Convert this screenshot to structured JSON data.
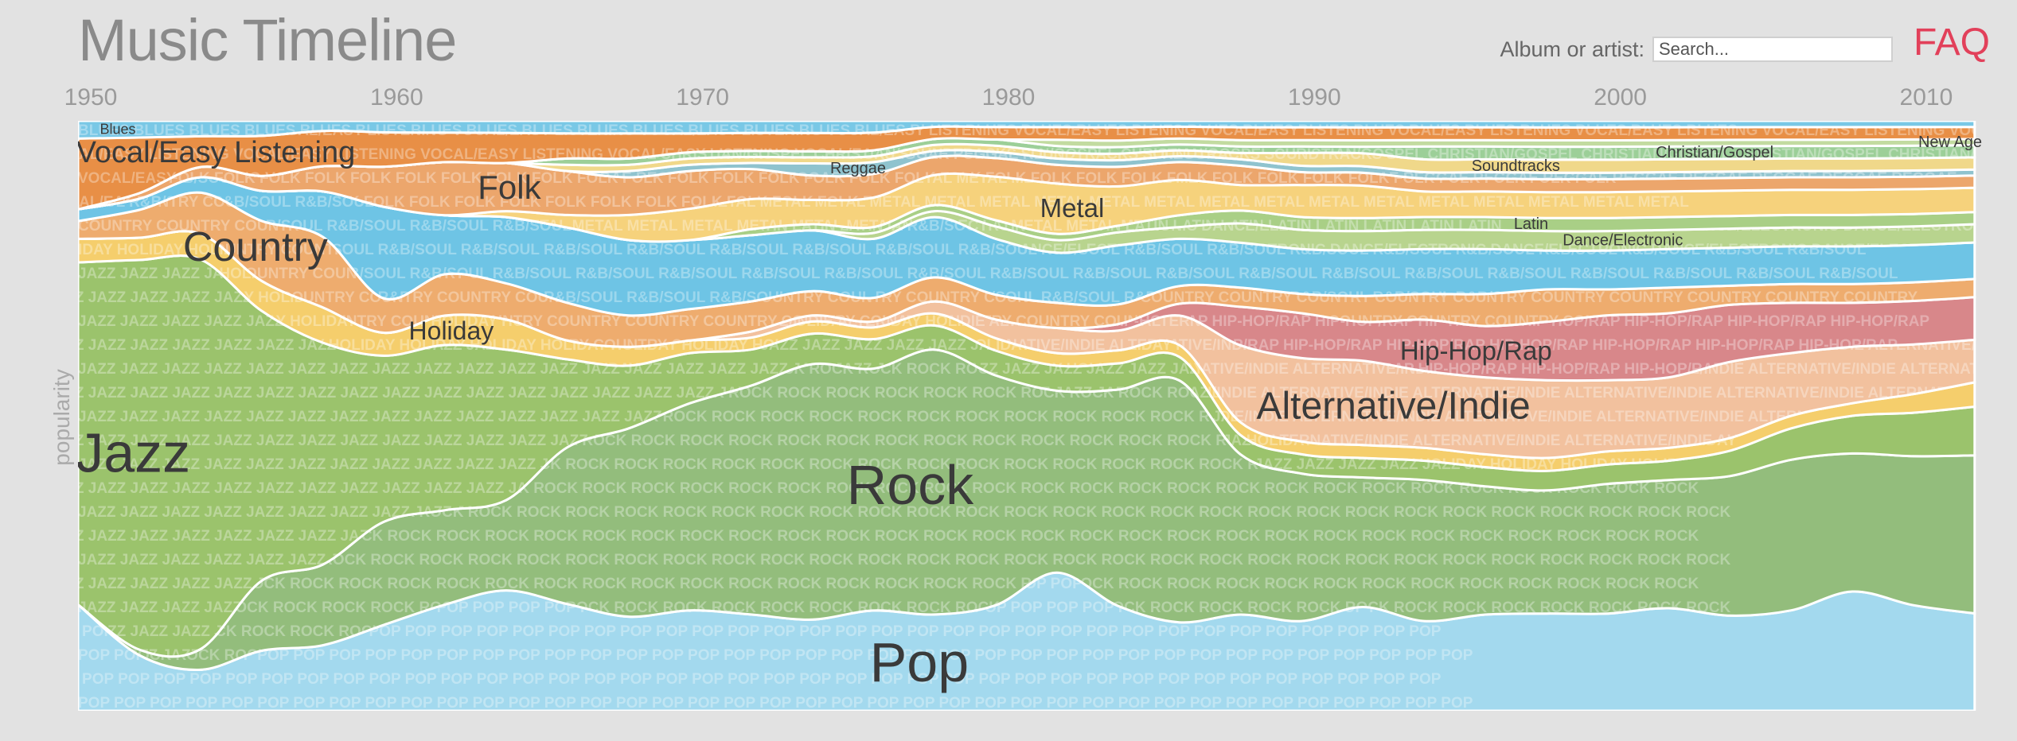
{
  "app": {
    "title": "Music Timeline",
    "search_label": "Album or artist:",
    "search_placeholder": "Search...",
    "faq_label": "FAQ"
  },
  "colors": {
    "background": "#e2e2e2",
    "faq": "#e2405a",
    "separator": "#ffffff"
  },
  "chart_data": {
    "type": "area",
    "x": [
      1950,
      1952,
      1954,
      1956,
      1958,
      1960,
      1962,
      1964,
      1966,
      1968,
      1970,
      1972,
      1974,
      1976,
      1978,
      1980,
      1982,
      1984,
      1986,
      1988,
      1990,
      1992,
      1994,
      1996,
      1998,
      2000,
      2002,
      2004,
      2006,
      2008,
      2010,
      2012
    ],
    "xlim": [
      1950,
      2012.5
    ],
    "xticks": [
      1950,
      1960,
      1970,
      1980,
      1990,
      2000,
      2010
    ],
    "ylabel": "popularity",
    "ylim": [
      0,
      100
    ],
    "series": [
      {
        "name": "Pop",
        "color": "#a3d9ee",
        "watermark": "POP",
        "values": [
          18,
          10,
          8,
          12,
          13,
          15,
          18,
          20,
          17,
          15,
          16,
          16,
          15,
          17,
          16,
          17,
          22,
          16,
          15,
          15,
          14,
          16,
          14,
          15,
          15,
          15,
          16,
          15,
          16,
          19,
          17,
          16
        ]
      },
      {
        "name": "Rock",
        "color": "#93bd7c",
        "watermark": "ROCK",
        "values": [
          0,
          1,
          4,
          14,
          16,
          18,
          16,
          15,
          25,
          30,
          33,
          38,
          42,
          41,
          44,
          37,
          29,
          33,
          41,
          25,
          23,
          20,
          22,
          20,
          19,
          20,
          20,
          22,
          24,
          22,
          24,
          26
        ]
      },
      {
        "name": "Jazz",
        "color": "#9bc36c",
        "watermark": "JAZZ",
        "values": [
          58,
          70,
          76,
          54,
          44,
          29,
          28,
          25,
          14,
          10,
          8,
          6,
          5,
          5,
          4,
          4,
          4,
          4,
          4,
          3,
          3,
          3,
          3,
          3,
          3,
          3,
          3,
          4,
          5,
          6,
          7,
          8
        ]
      },
      {
        "name": "Holiday",
        "color": "#f5ce6c",
        "watermark": "HOLIDAY",
        "values": [
          4,
          4,
          5,
          6,
          7,
          4,
          5,
          5,
          3,
          3,
          2,
          2,
          2,
          2,
          2,
          2,
          2,
          2,
          2,
          2,
          2,
          2,
          2,
          2,
          2,
          2,
          2,
          2,
          2,
          2,
          3,
          4
        ]
      },
      {
        "name": "Alternative/Indie",
        "color": "#f2c19e",
        "watermark": "ALTERNATIVE/INDIE",
        "values": [
          0,
          0,
          0,
          0,
          0,
          0,
          0,
          0,
          0,
          0,
          0,
          1,
          1,
          1,
          2,
          3,
          4,
          3,
          5,
          12,
          13,
          13,
          12,
          12,
          12,
          11,
          11,
          12,
          10,
          9,
          8,
          7
        ]
      },
      {
        "name": "Hip-Hop/Rap",
        "color": "#d8878a",
        "watermark": "HIP-HOP/RAP",
        "values": [
          0,
          0,
          0,
          0,
          0,
          0,
          0,
          0,
          0,
          0,
          0,
          0,
          0,
          0,
          0,
          0,
          0,
          1,
          2,
          6,
          7,
          6,
          8,
          8,
          9,
          10,
          10,
          9,
          8,
          7,
          7,
          7
        ]
      },
      {
        "name": "Country",
        "color": "#eeac6e",
        "watermark": "COUNTRY",
        "values": [
          3,
          5,
          8,
          12,
          14,
          6,
          7,
          6,
          6,
          5,
          5,
          5,
          4,
          4,
          4,
          4,
          4,
          3,
          3,
          3,
          3,
          4,
          4,
          5,
          5,
          4,
          4,
          3,
          3,
          3,
          3,
          3
        ]
      },
      {
        "name": "R&B/Soul",
        "color": "#6ec4e5",
        "watermark": "R&B/SOUL",
        "values": [
          2,
          2,
          3,
          6,
          9,
          16,
          10,
          11,
          12,
          12,
          11,
          11,
          10,
          10,
          10,
          9,
          8,
          9,
          8,
          7,
          7,
          7,
          7,
          7,
          6,
          6,
          6,
          6,
          6,
          6,
          6,
          6
        ]
      },
      {
        "name": "Dance/Electronic",
        "color": "#b8d48e",
        "watermark": "DANCE/ELECTRONIC",
        "values": [
          0,
          0,
          0,
          0,
          0,
          0,
          0,
          0,
          0,
          0,
          0,
          0,
          0,
          1,
          1,
          2,
          2,
          2,
          2,
          3,
          3,
          3,
          3,
          3,
          3,
          3,
          3,
          3,
          3,
          3,
          3,
          3
        ]
      },
      {
        "name": "Latin",
        "color": "#a9cf86",
        "watermark": "LATIN",
        "values": [
          0,
          0,
          0,
          0,
          0,
          0,
          0,
          0,
          0,
          0,
          0,
          1,
          1,
          1,
          1,
          1,
          1,
          1,
          2,
          2,
          2,
          2,
          2,
          2,
          2,
          2,
          2,
          2,
          2,
          2,
          2,
          2
        ]
      },
      {
        "name": "Metal",
        "color": "#f6d27c",
        "watermark": "METAL",
        "values": [
          0,
          0,
          0,
          0,
          0,
          0,
          0,
          1,
          2,
          4,
          5,
          5,
          4,
          5,
          5,
          7,
          8,
          6,
          6,
          4,
          5,
          5,
          4,
          4,
          4,
          4,
          4,
          4,
          4,
          4,
          4,
          4
        ]
      },
      {
        "name": "Folk",
        "color": "#eca66c",
        "watermark": "FOLK",
        "values": [
          0,
          1,
          2,
          3,
          5,
          7,
          9,
          8,
          7,
          6,
          6,
          5,
          4,
          4,
          3,
          3,
          3,
          3,
          3,
          3,
          2,
          2,
          2,
          2,
          2,
          2,
          2,
          2,
          2,
          2,
          2,
          2
        ]
      },
      {
        "name": "Reggae",
        "color": "#8fc3ce",
        "watermark": "REGGAE",
        "values": [
          0,
          0,
          0,
          0,
          0,
          0,
          0,
          0,
          0,
          1,
          1,
          1,
          2,
          2,
          1,
          1,
          1,
          1,
          1,
          1,
          1,
          1,
          1,
          1,
          1,
          1,
          1,
          1,
          1,
          1,
          1,
          1
        ]
      },
      {
        "name": "Soundtracks",
        "color": "#f0d88a",
        "watermark": "SOUNDTRACKS",
        "values": [
          0,
          0,
          0,
          0,
          0,
          0,
          0,
          0,
          1,
          1,
          1,
          1,
          1,
          1,
          1,
          1,
          1,
          1,
          1,
          1,
          2,
          2,
          2,
          2,
          2,
          2,
          2,
          2,
          2,
          2,
          2,
          2
        ]
      },
      {
        "name": "Christian/Gospel",
        "color": "#9ccf98",
        "watermark": "CHRISTIAN/GOSPEL",
        "values": [
          0,
          0,
          0,
          0,
          0,
          0,
          0,
          0,
          1,
          1,
          1,
          1,
          1,
          1,
          1,
          1,
          1,
          1,
          1,
          1,
          1,
          1,
          2,
          2,
          2,
          2,
          2,
          2,
          2,
          2,
          2,
          2
        ]
      },
      {
        "name": "New Age",
        "color": "#c2dba0",
        "watermark": "NEW AGE",
        "values": [
          0,
          0,
          0,
          0,
          0,
          0,
          0,
          0,
          0,
          0,
          0,
          0,
          0,
          0,
          0,
          0,
          1,
          1,
          1,
          1,
          1,
          1,
          1,
          1,
          1,
          1,
          1,
          1,
          1,
          1,
          1,
          1
        ]
      },
      {
        "name": "Vocal/Easy Listening",
        "color": "#e88f46",
        "watermark": "VOCAL/EASY LISTENING",
        "values": [
          12,
          10,
          6,
          8,
          7,
          6,
          5,
          5,
          4,
          4,
          3,
          3,
          3,
          3,
          2,
          2,
          2,
          2,
          2,
          2,
          2,
          2,
          2,
          2,
          2,
          2,
          2,
          2,
          2,
          2,
          2,
          2
        ]
      },
      {
        "name": "Blues",
        "color": "#79c8e6",
        "watermark": "BLUES",
        "values": [
          3,
          3,
          3,
          3,
          2,
          2,
          2,
          2,
          2,
          2,
          2,
          2,
          2,
          2,
          1,
          1,
          1,
          1,
          1,
          1,
          1,
          1,
          1,
          1,
          1,
          1,
          1,
          1,
          1,
          1,
          1,
          1
        ]
      }
    ],
    "labels": [
      {
        "text": "Pop",
        "series": "Pop",
        "x": 1977.5,
        "size": 70
      },
      {
        "text": "Rock",
        "series": "Rock",
        "x": 1977.2,
        "size": 70
      },
      {
        "text": "Jazz",
        "series": "Jazz",
        "x": 1951.8,
        "size": 70
      },
      {
        "text": "Alternative/Indie",
        "series": "Alternative/Indie",
        "x": 1993.0,
        "size": 48
      },
      {
        "text": "Hip-Hop/Rap",
        "series": "Hip-Hop/Rap",
        "x": 1995.7,
        "size": 33
      },
      {
        "text": "Country",
        "series": "Country",
        "x": 1955.8,
        "size": 52
      },
      {
        "text": "Holiday",
        "series": "Holiday",
        "x": 1962.2,
        "size": 32
      },
      {
        "text": "Vocal/Easy Listening",
        "series": "Vocal/Easy Listening",
        "x": 1954.5,
        "size": 38
      },
      {
        "text": "Folk",
        "series": "Folk",
        "x": 1964.1,
        "size": 42
      },
      {
        "text": "Metal",
        "series": "Metal",
        "x": 1982.5,
        "size": 33
      },
      {
        "text": "Blues",
        "series": "Blues",
        "x": 1951.3,
        "size": 18
      },
      {
        "text": "Reggae",
        "series": "Reggae",
        "x": 1975.5,
        "size": 20
      },
      {
        "text": "Soundtracks",
        "series": "Soundtracks",
        "x": 1997.0,
        "size": 20
      },
      {
        "text": "Christian/Gospel",
        "series": "Christian/Gospel",
        "x": 2003.5,
        "size": 20
      },
      {
        "text": "Latin",
        "series": "Latin",
        "x": 1997.5,
        "size": 20
      },
      {
        "text": "Dance/Electronic",
        "series": "Dance/Electronic",
        "x": 2000.5,
        "size": 20
      },
      {
        "text": "New Age",
        "series": "New Age",
        "x": 2011.2,
        "size": 20
      }
    ]
  }
}
